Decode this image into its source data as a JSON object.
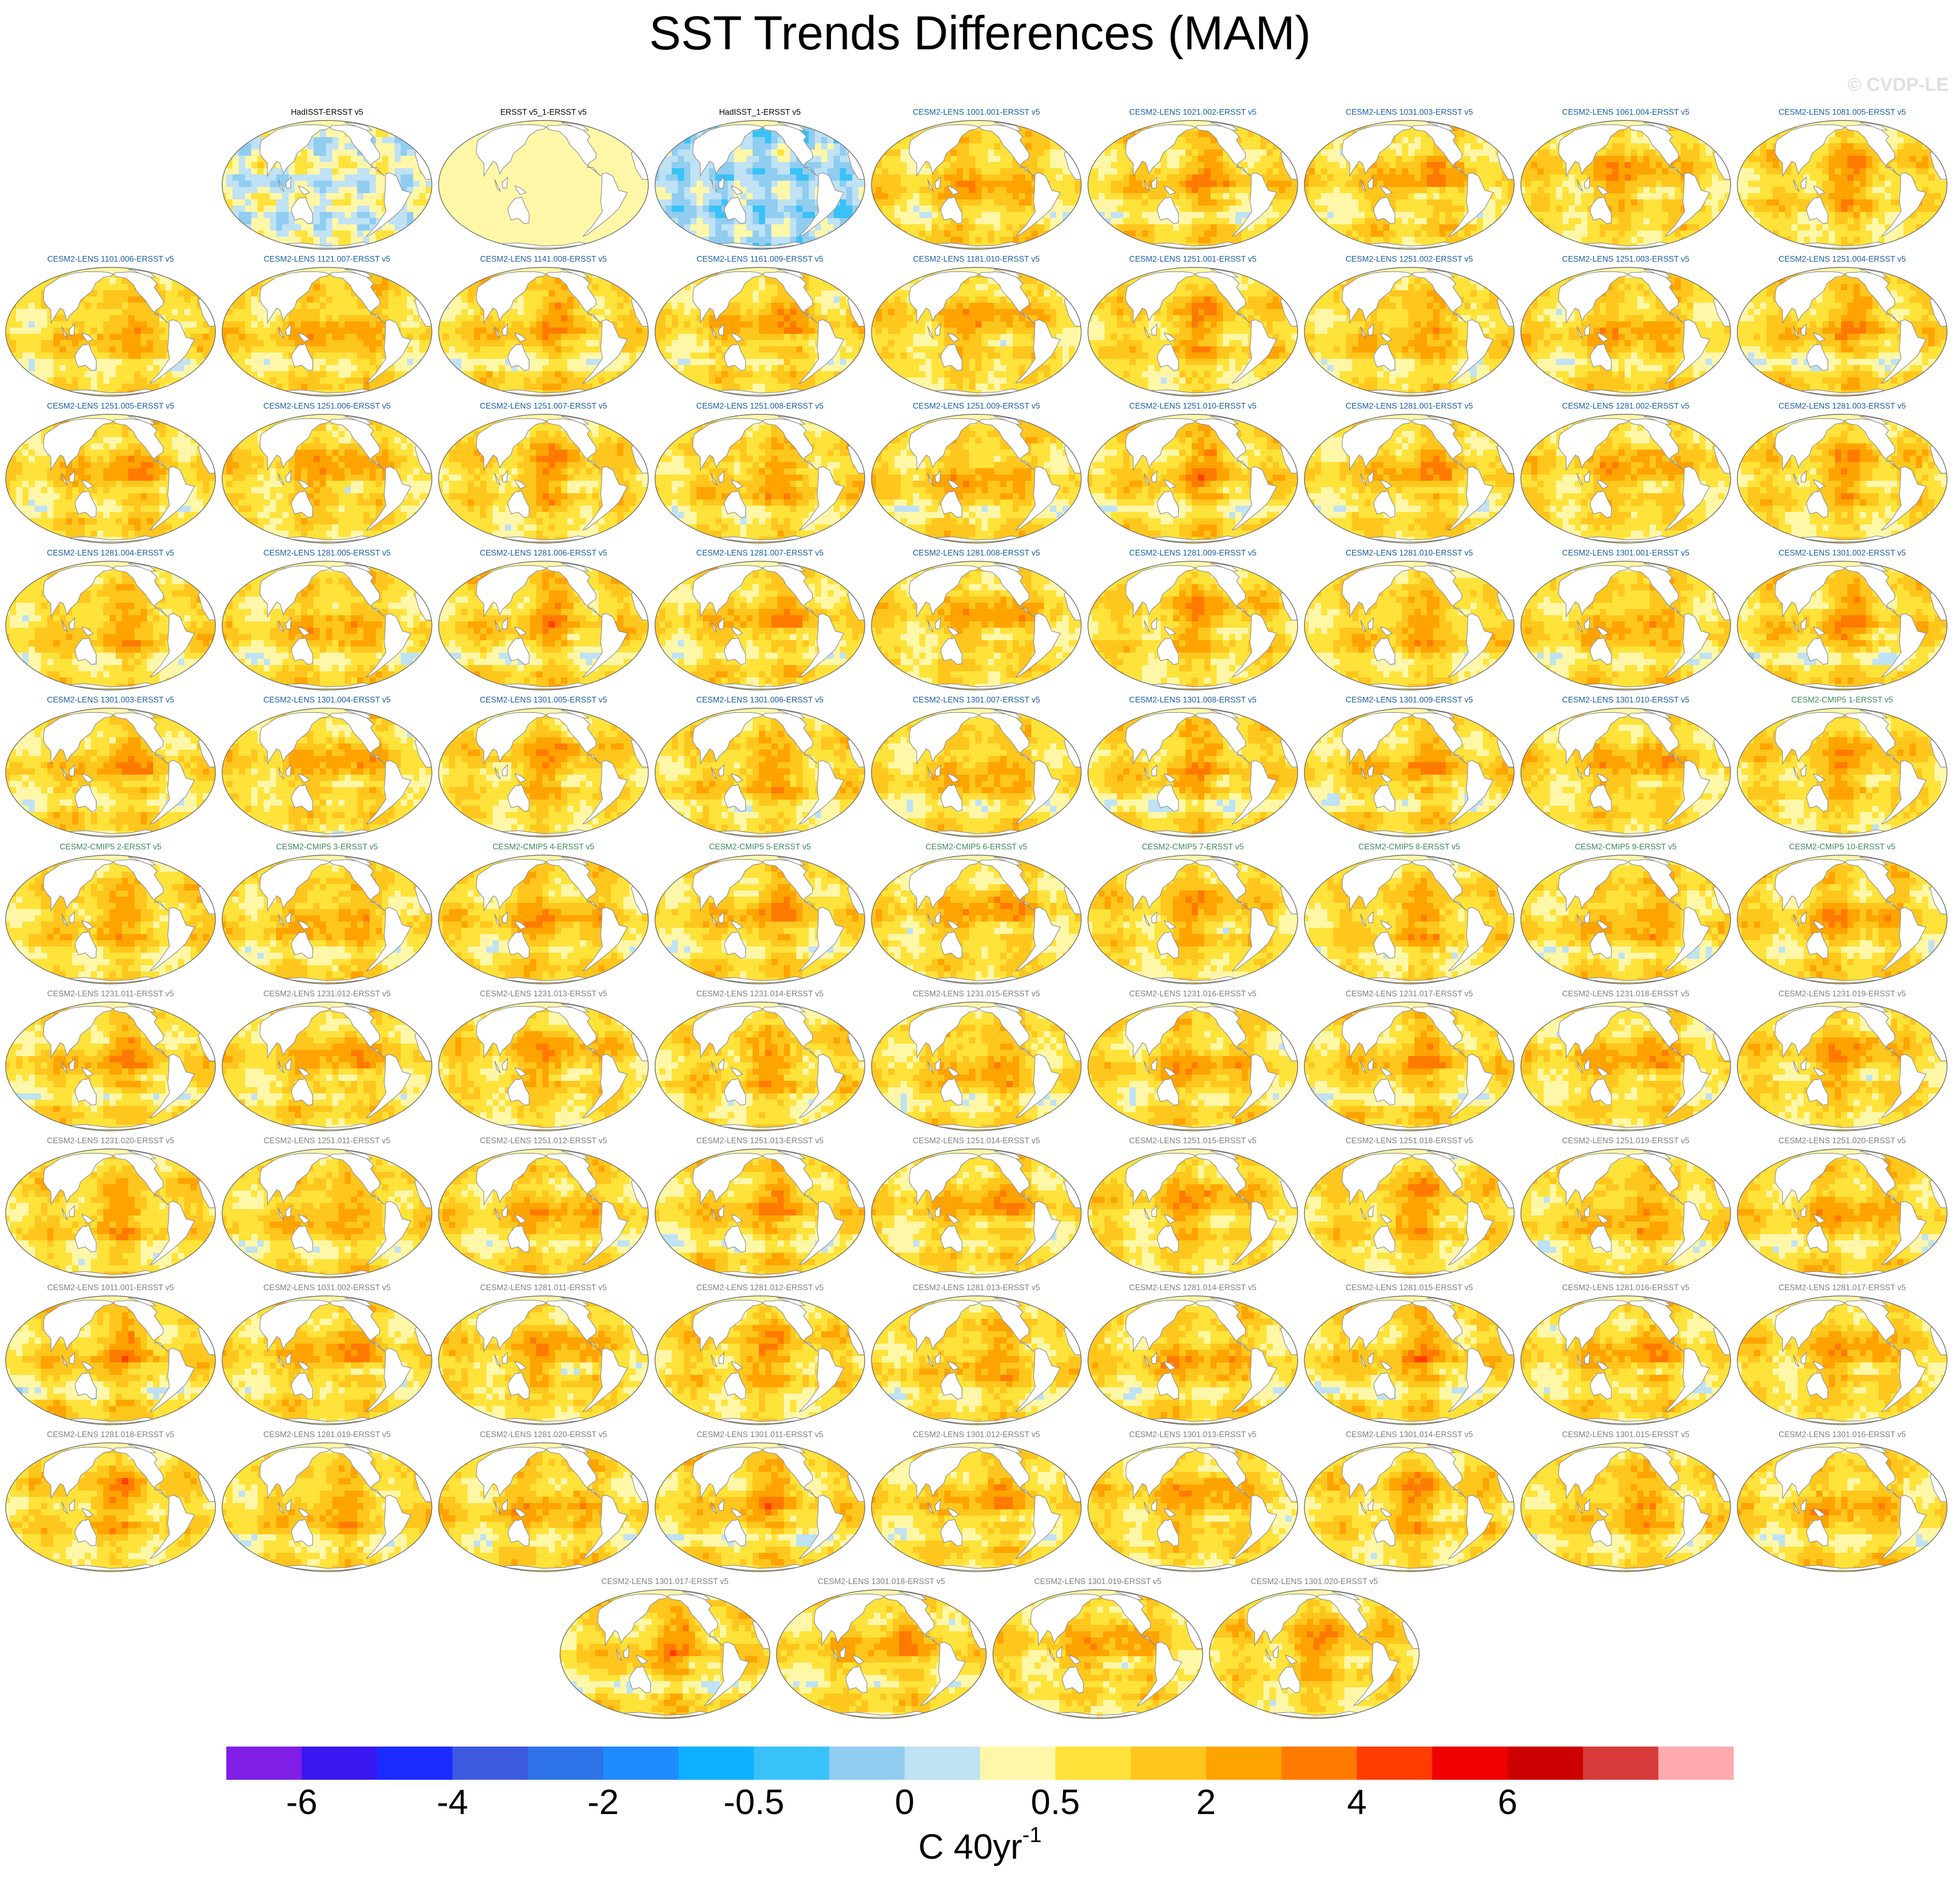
{
  "title": "SST Trends Differences (MAM)",
  "watermark": "© CVDP-LE",
  "colors": {
    "obs_title": "#000000",
    "lens_title": "#1a5fa8",
    "cmip5_title": "#3b8b5a",
    "grey_title": "#808080",
    "land": "#ffffff",
    "coast": "#8a8a8a"
  },
  "chart_data": {
    "type": "heatmap",
    "title": "SST Trends Differences (MAM)",
    "colorbar": {
      "colors": [
        "#7f1fe6",
        "#3a16f0",
        "#1a2bff",
        "#3c5ae0",
        "#2e72e8",
        "#1e8cff",
        "#0fb0ff",
        "#38c2f7",
        "#90cdf0",
        "#bfe2f4",
        "#fff7a8",
        "#ffe23a",
        "#ffc61e",
        "#ffa300",
        "#ff7a00",
        "#ff3d00",
        "#f00000",
        "#cc0000",
        "#d83a3a",
        "#ffaab0"
      ],
      "tick_labels": [
        "-6",
        "-4",
        "-2",
        "-0.5",
        "0",
        "0.5",
        "2",
        "4",
        "6"
      ],
      "tick_boundaries": [
        1,
        3,
        5,
        7,
        9,
        11,
        13,
        15,
        17
      ],
      "units_text": "C 40yr",
      "units_superscript": "-1"
    },
    "panels": [
      {
        "label": "HadISST-ERSST v5",
        "group": "obs",
        "pattern": "obs"
      },
      {
        "label": "ERSST v5_1-ERSST v5",
        "group": "obs",
        "pattern": "flat"
      },
      {
        "label": "HadISST_1-ERSST v5",
        "group": "obs",
        "pattern": "obs"
      },
      {
        "label": "CESM2-LENS 1001.001-ERSST v5",
        "group": "lens",
        "pattern": "model"
      },
      {
        "label": "CESM2-LENS 1021.002-ERSST v5",
        "group": "lens",
        "pattern": "model"
      },
      {
        "label": "CESM2-LENS 1031.003-ERSST v5",
        "group": "lens",
        "pattern": "model"
      },
      {
        "label": "CESM2-LENS 1061.004-ERSST v5",
        "group": "lens",
        "pattern": "model"
      },
      {
        "label": "CESM2-LENS 1081.005-ERSST v5",
        "group": "lens",
        "pattern": "model"
      },
      {
        "label": "CESM2-LENS 1101.006-ERSST v5",
        "group": "lens",
        "pattern": "model"
      },
      {
        "label": "CESM2-LENS 1121.007-ERSST v5",
        "group": "lens",
        "pattern": "model"
      },
      {
        "label": "CESM2-LENS 1141.008-ERSST v5",
        "group": "lens",
        "pattern": "model"
      },
      {
        "label": "CESM2-LENS 1161.009-ERSST v5",
        "group": "lens",
        "pattern": "model"
      },
      {
        "label": "CESM2-LENS 1181.010-ERSST v5",
        "group": "lens",
        "pattern": "model"
      },
      {
        "label": "CESM2-LENS 1251.001-ERSST v5",
        "group": "lens",
        "pattern": "model"
      },
      {
        "label": "CESM2-LENS 1251.002-ERSST v5",
        "group": "lens",
        "pattern": "model"
      },
      {
        "label": "CESM2-LENS 1251.003-ERSST v5",
        "group": "lens",
        "pattern": "model"
      },
      {
        "label": "CESM2-LENS 1251.004-ERSST v5",
        "group": "lens",
        "pattern": "model"
      },
      {
        "label": "CESM2-LENS 1251.005-ERSST v5",
        "group": "lens",
        "pattern": "model"
      },
      {
        "label": "CESM2-LENS 1251.006-ERSST v5",
        "group": "lens",
        "pattern": "model"
      },
      {
        "label": "CESM2-LENS 1251.007-ERSST v5",
        "group": "lens",
        "pattern": "model"
      },
      {
        "label": "CESM2-LENS 1251.008-ERSST v5",
        "group": "lens",
        "pattern": "model"
      },
      {
        "label": "CESM2-LENS 1251.009-ERSST v5",
        "group": "lens",
        "pattern": "model"
      },
      {
        "label": "CESM2-LENS 1251.010-ERSST v5",
        "group": "lens",
        "pattern": "model"
      },
      {
        "label": "CESM2-LENS 1281.001-ERSST v5",
        "group": "lens",
        "pattern": "model"
      },
      {
        "label": "CESM2-LENS 1281.002-ERSST v5",
        "group": "lens",
        "pattern": "model"
      },
      {
        "label": "CESM2-LENS 1281.003-ERSST v5",
        "group": "lens",
        "pattern": "model"
      },
      {
        "label": "CESM2-LENS 1281.004-ERSST v5",
        "group": "lens",
        "pattern": "model"
      },
      {
        "label": "CESM2-LENS 1281.005-ERSST v5",
        "group": "lens",
        "pattern": "model"
      },
      {
        "label": "CESM2-LENS 1281.006-ERSST v5",
        "group": "lens",
        "pattern": "model"
      },
      {
        "label": "CESM2-LENS 1281.007-ERSST v5",
        "group": "lens",
        "pattern": "model"
      },
      {
        "label": "CESM2-LENS 1281.008-ERSST v5",
        "group": "lens",
        "pattern": "model"
      },
      {
        "label": "CESM2-LENS 1281.009-ERSST v5",
        "group": "lens",
        "pattern": "model"
      },
      {
        "label": "CESM2-LENS 1281.010-ERSST v5",
        "group": "lens",
        "pattern": "model"
      },
      {
        "label": "CESM2-LENS 1301.001-ERSST v5",
        "group": "lens",
        "pattern": "model"
      },
      {
        "label": "CESM2-LENS 1301.002-ERSST v5",
        "group": "lens",
        "pattern": "model"
      },
      {
        "label": "CESM2-LENS 1301.003-ERSST v5",
        "group": "lens",
        "pattern": "model"
      },
      {
        "label": "CESM2-LENS 1301.004-ERSST v5",
        "group": "lens",
        "pattern": "model"
      },
      {
        "label": "CESM2-LENS 1301.005-ERSST v5",
        "group": "lens",
        "pattern": "model"
      },
      {
        "label": "CESM2-LENS 1301.006-ERSST v5",
        "group": "lens",
        "pattern": "model"
      },
      {
        "label": "CESM2-LENS 1301.007-ERSST v5",
        "group": "lens",
        "pattern": "model"
      },
      {
        "label": "CESM2-LENS 1301.008-ERSST v5",
        "group": "lens",
        "pattern": "model"
      },
      {
        "label": "CESM2-LENS 1301.009-ERSST v5",
        "group": "lens",
        "pattern": "model"
      },
      {
        "label": "CESM2-LENS 1301.010-ERSST v5",
        "group": "lens",
        "pattern": "model"
      },
      {
        "label": "CESM2-CMIP5 1-ERSST v5",
        "group": "cmip5",
        "pattern": "model"
      },
      {
        "label": "CESM2-CMIP5 2-ERSST v5",
        "group": "cmip5",
        "pattern": "model"
      },
      {
        "label": "CESM2-CMIP5 3-ERSST v5",
        "group": "cmip5",
        "pattern": "model"
      },
      {
        "label": "CESM2-CMIP5 4-ERSST v5",
        "group": "cmip5",
        "pattern": "model"
      },
      {
        "label": "CESM2-CMIP5 5-ERSST v5",
        "group": "cmip5",
        "pattern": "model"
      },
      {
        "label": "CESM2-CMIP5 6-ERSST v5",
        "group": "cmip5",
        "pattern": "model"
      },
      {
        "label": "CESM2-CMIP5 7-ERSST v5",
        "group": "cmip5",
        "pattern": "model"
      },
      {
        "label": "CESM2-CMIP5 8-ERSST v5",
        "group": "cmip5",
        "pattern": "model"
      },
      {
        "label": "CESM2-CMIP5 9-ERSST v5",
        "group": "cmip5",
        "pattern": "model"
      },
      {
        "label": "CESM2-CMIP5 10-ERSST v5",
        "group": "cmip5",
        "pattern": "model"
      },
      {
        "label": "CESM2-LENS 1231.011-ERSST v5",
        "group": "grey",
        "pattern": "model"
      },
      {
        "label": "CESM2-LENS 1231.012-ERSST v5",
        "group": "grey",
        "pattern": "model"
      },
      {
        "label": "CESM2-LENS 1231.013-ERSST v5",
        "group": "grey",
        "pattern": "model"
      },
      {
        "label": "CESM2-LENS 1231.014-ERSST v5",
        "group": "grey",
        "pattern": "model"
      },
      {
        "label": "CESM2-LENS 1231.015-ERSST v5",
        "group": "grey",
        "pattern": "model"
      },
      {
        "label": "CESM2-LENS 1231.016-ERSST v5",
        "group": "grey",
        "pattern": "model"
      },
      {
        "label": "CESM2-LENS 1231.017-ERSST v5",
        "group": "grey",
        "pattern": "model"
      },
      {
        "label": "CESM2-LENS 1231.018-ERSST v5",
        "group": "grey",
        "pattern": "model"
      },
      {
        "label": "CESM2-LENS 1231.019-ERSST v5",
        "group": "grey",
        "pattern": "model"
      },
      {
        "label": "CESM2-LENS 1231.020-ERSST v5",
        "group": "grey",
        "pattern": "model"
      },
      {
        "label": "CESM2-LENS 1251.011-ERSST v5",
        "group": "grey",
        "pattern": "model"
      },
      {
        "label": "CESM2-LENS 1251.012-ERSST v5",
        "group": "grey",
        "pattern": "model"
      },
      {
        "label": "CESM2-LENS 1251.013-ERSST v5",
        "group": "grey",
        "pattern": "model"
      },
      {
        "label": "CESM2-LENS 1251.014-ERSST v5",
        "group": "grey",
        "pattern": "model"
      },
      {
        "label": "CESM2-LENS 1251.015-ERSST v5",
        "group": "grey",
        "pattern": "model"
      },
      {
        "label": "CESM2-LENS 1251.018-ERSST v5",
        "group": "grey",
        "pattern": "model"
      },
      {
        "label": "CESM2-LENS 1251.019-ERSST v5",
        "group": "grey",
        "pattern": "model"
      },
      {
        "label": "CESM2-LENS 1251.020-ERSST v5",
        "group": "grey",
        "pattern": "model"
      },
      {
        "label": "CESM2-LENS 1011.001-ERSST v5",
        "group": "grey",
        "pattern": "model"
      },
      {
        "label": "CESM2-LENS 1031.002-ERSST v5",
        "group": "grey",
        "pattern": "model"
      },
      {
        "label": "CESM2-LENS 1281.011-ERSST v5",
        "group": "grey",
        "pattern": "model"
      },
      {
        "label": "CESM2-LENS 1281.012-ERSST v5",
        "group": "grey",
        "pattern": "model"
      },
      {
        "label": "CESM2-LENS 1281.013-ERSST v5",
        "group": "grey",
        "pattern": "model"
      },
      {
        "label": "CESM2-LENS 1281.014-ERSST v5",
        "group": "grey",
        "pattern": "model"
      },
      {
        "label": "CESM2-LENS 1281.015-ERSST v5",
        "group": "grey",
        "pattern": "model"
      },
      {
        "label": "CESM2-LENS 1281.016-ERSST v5",
        "group": "grey",
        "pattern": "model"
      },
      {
        "label": "CESM2-LENS 1281.017-ERSST v5",
        "group": "grey",
        "pattern": "model"
      },
      {
        "label": "CESM2-LENS 1281.018-ERSST v5",
        "group": "grey",
        "pattern": "model"
      },
      {
        "label": "CESM2-LENS 1281.019-ERSST v5",
        "group": "grey",
        "pattern": "model"
      },
      {
        "label": "CESM2-LENS 1281.020-ERSST v5",
        "group": "grey",
        "pattern": "model"
      },
      {
        "label": "CESM2-LENS 1301.011-ERSST v5",
        "group": "grey",
        "pattern": "model"
      },
      {
        "label": "CESM2-LENS 1301.012-ERSST v5",
        "group": "grey",
        "pattern": "model"
      },
      {
        "label": "CESM2-LENS 1301.013-ERSST v5",
        "group": "grey",
        "pattern": "model"
      },
      {
        "label": "CESM2-LENS 1301.014-ERSST v5",
        "group": "grey",
        "pattern": "model"
      },
      {
        "label": "CESM2-LENS 1301.015-ERSST v5",
        "group": "grey",
        "pattern": "model"
      },
      {
        "label": "CESM2-LENS 1301.016-ERSST v5",
        "group": "grey",
        "pattern": "model"
      },
      {
        "label": "CESM2-LENS 1301.017-ERSST v5",
        "group": "grey",
        "pattern": "model"
      },
      {
        "label": "CESM2-LENS 1301.018-ERSST v5",
        "group": "grey",
        "pattern": "model"
      },
      {
        "label": "CESM2-LENS 1301.019-ERSST v5",
        "group": "grey",
        "pattern": "model"
      },
      {
        "label": "CESM2-LENS 1301.020-ERSST v5",
        "group": "grey",
        "pattern": "model"
      }
    ]
  }
}
